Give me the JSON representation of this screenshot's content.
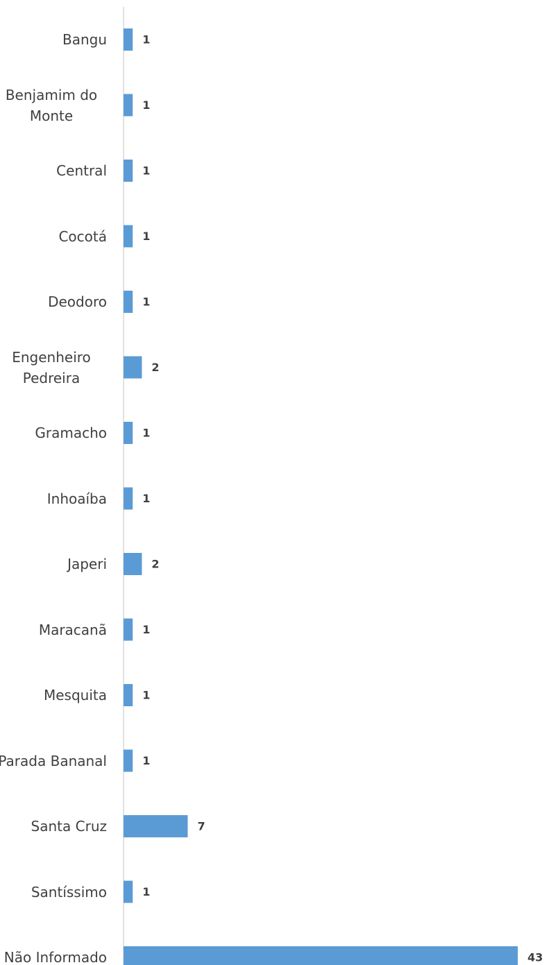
{
  "chart_data": {
    "type": "barh",
    "categories": [
      "Bangu",
      "Benjamim do Monte",
      "Central",
      "Cocotá",
      "Deodoro",
      "Engenheiro Pedreira",
      "Gramacho",
      "Inhoaíba",
      "Japeri",
      "Maracanã",
      "Mesquita",
      "Parada Bananal",
      "Santa Cruz",
      "Santíssimo",
      "Não Informado"
    ],
    "values": [
      1,
      1,
      1,
      1,
      1,
      2,
      1,
      1,
      2,
      1,
      1,
      1,
      7,
      1,
      43
    ],
    "color": "#5b9bd5"
  }
}
